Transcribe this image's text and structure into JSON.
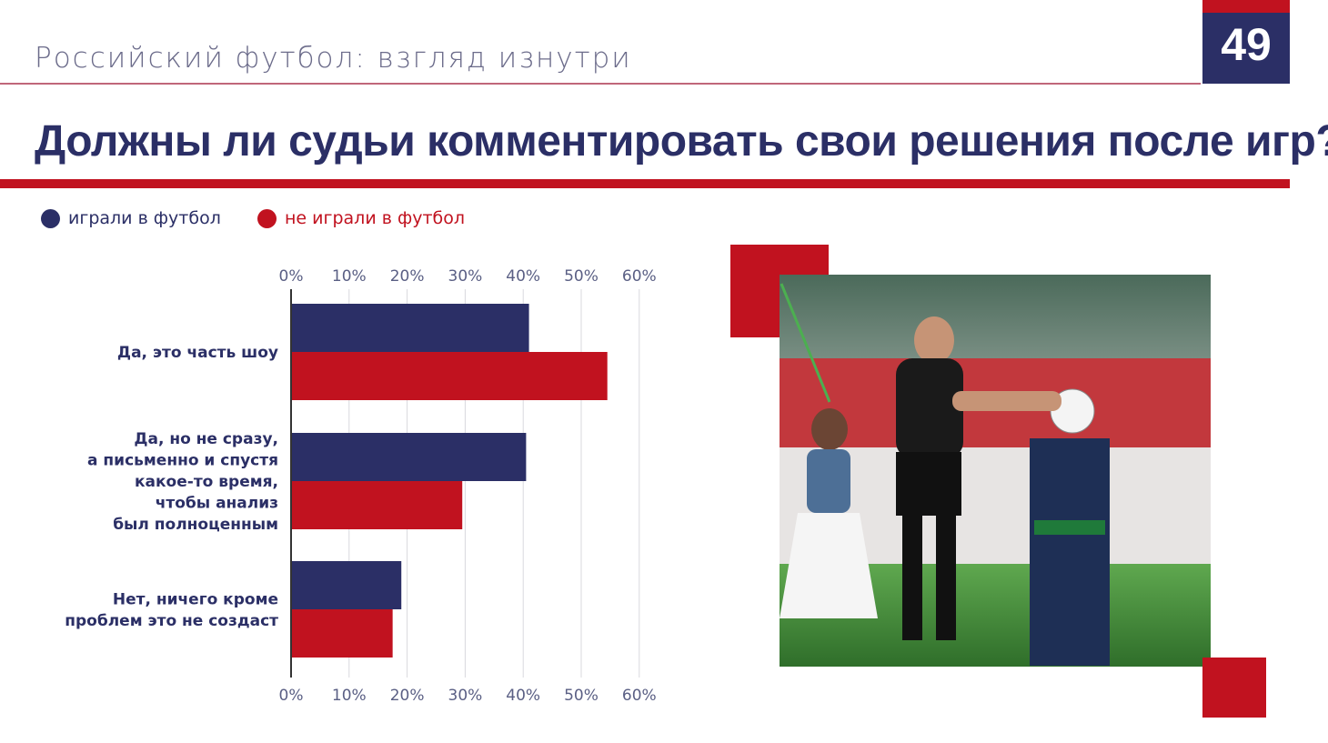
{
  "header": {
    "subtitle": "Российский футбол: взгляд изнутри",
    "page_number": "49",
    "title": "Должны ли судьи комментировать свои решения после игр?"
  },
  "legend": [
    {
      "label": "играли в футбол",
      "color": "#2b2f66"
    },
    {
      "label": "не играли в футбол",
      "color": "#c1121f"
    }
  ],
  "colors": {
    "accent": "#c1121f",
    "brand": "#2b2f66"
  },
  "chart_data": {
    "type": "bar",
    "orientation": "horizontal",
    "categories": [
      [
        "Да, это часть шоу"
      ],
      [
        "Да, но не сразу,",
        "а письменно и спустя",
        "какое-то время,",
        "чтобы анализ",
        "был полноценным"
      ],
      [
        "Нет, ничего кроме",
        "проблем это не создаст"
      ]
    ],
    "series": [
      {
        "name": "играли в футбол",
        "color": "#2b2f66",
        "values": [
          41,
          40.5,
          19
        ]
      },
      {
        "name": "не играли в футбол",
        "color": "#c1121f",
        "values": [
          54.5,
          29.5,
          17.5
        ]
      }
    ],
    "xlim": [
      0,
      60
    ],
    "ticks": [
      "0%",
      "10%",
      "20%",
      "30%",
      "40%",
      "50%",
      "60%"
    ],
    "grid": true,
    "legend_position": "top-left"
  },
  "image": {
    "alt_icon": "referee-photo"
  }
}
